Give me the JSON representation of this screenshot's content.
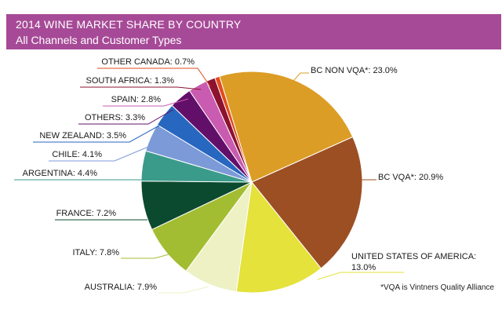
{
  "chart_data": {
    "type": "pie",
    "title": "2014 WINE MARKET SHARE BY COUNTRY",
    "subtitle": "All Channels and Customer Types",
    "unit": "%",
    "slices": [
      {
        "label": "BC NON VQA*",
        "display": "BC NON VQA*: 23.0%",
        "value": 23.0,
        "color": "#dc9d26"
      },
      {
        "label": "BC VQA*",
        "display": "BC VQA*: 20.9%",
        "value": 20.9,
        "color": "#9c4f23"
      },
      {
        "label": "UNITED STATES OF AMERICA",
        "display": [
          "UNITED STATES OF AMERICA:",
          "13.0%"
        ],
        "value": 13.0,
        "color": "#e4e23b"
      },
      {
        "label": "AUSTRALIA",
        "display": "AUSTRALIA: 7.9%",
        "value": 7.9,
        "color": "#eef1c3"
      },
      {
        "label": "ITALY",
        "display": "ITALY: 7.8%",
        "value": 7.8,
        "color": "#a3bd32"
      },
      {
        "label": "FRANCE",
        "display": "FRANCE: 7.2%",
        "value": 7.2,
        "color": "#0b4a2e"
      },
      {
        "label": "ARGENTINA",
        "display": "ARGENTINA: 4.4%",
        "value": 4.4,
        "color": "#3b9b8a"
      },
      {
        "label": "CHILE",
        "display": "CHILE: 4.1%",
        "value": 4.1,
        "color": "#7c9ad8"
      },
      {
        "label": "NEW ZEALAND",
        "display": "NEW ZEALAND: 3.5%",
        "value": 3.5,
        "color": "#2767bf"
      },
      {
        "label": "OTHERS",
        "display": "OTHERS: 3.3%",
        "value": 3.3,
        "color": "#620f6a"
      },
      {
        "label": "SPAIN",
        "display": "SPAIN: 2.8%",
        "value": 2.8,
        "color": "#c95bb0"
      },
      {
        "label": "SOUTH AFRICA",
        "display": "SOUTH AFRICA: 1.3%",
        "value": 1.3,
        "color": "#8c1230"
      },
      {
        "label": "OTHER CANADA",
        "display": "OTHER CANADA: 0.7%",
        "value": 0.7,
        "color": "#e24b1a"
      }
    ]
  },
  "footnote": "*VQA is Vintners Quality Alliance"
}
